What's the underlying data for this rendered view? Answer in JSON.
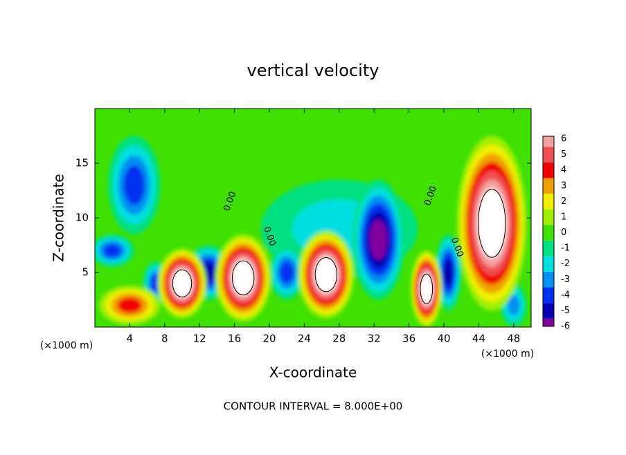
{
  "chart_data": {
    "type": "contour",
    "title": "vertical velocity",
    "xlabel": "X-coordinate",
    "ylabel": "Z-coordinate",
    "xunit": "(×1000 m)",
    "xunit2": "(×1000 m)",
    "footnote": "CONTOUR INTERVAL = 8.000E+00",
    "xlim": [
      0,
      50
    ],
    "ylim": [
      0,
      20
    ],
    "xticks": [
      4,
      8,
      12,
      16,
      20,
      24,
      28,
      32,
      36,
      40,
      44,
      48
    ],
    "yticks": [
      5,
      10,
      15
    ],
    "colorbar": {
      "levels": [
        -6,
        -5,
        -4,
        -3,
        -2,
        -1,
        0,
        1,
        2,
        3,
        4,
        5,
        6
      ],
      "colors": [
        "#8000a0",
        "#0000b0",
        "#0030f0",
        "#0090f0",
        "#00e0e0",
        "#00e080",
        "#40e000",
        "#a0f000",
        "#f0f000",
        "#f0a000",
        "#f00000",
        "#f05050",
        "#f4a0a0"
      ],
      "above": "#ffffff"
    },
    "features": [
      {
        "x": 28,
        "z": 9,
        "rx": 9,
        "rz": 4.5,
        "value": -2
      },
      {
        "x": 4.5,
        "z": 13,
        "rx": 3,
        "rz": 4.5,
        "value": -4
      },
      {
        "x": 2,
        "z": 7,
        "rx": 2.5,
        "rz": 1.5,
        "value": -4
      },
      {
        "x": 32.5,
        "z": 8,
        "rx": 3,
        "rz": 5.5,
        "value": -6
      },
      {
        "x": 22,
        "z": 5,
        "rx": 2,
        "rz": 2.5,
        "value": -4
      },
      {
        "x": 13,
        "z": 5,
        "rx": 2.5,
        "rz": 2.5,
        "value": -5
      },
      {
        "x": 7,
        "z": 4,
        "rx": 1.5,
        "rz": 2,
        "value": -4
      },
      {
        "x": 40.5,
        "z": 5,
        "rx": 1.5,
        "rz": 3.5,
        "value": -5
      },
      {
        "x": 48,
        "z": 2,
        "rx": 1.5,
        "rz": 2,
        "value": -3
      },
      {
        "x": 4,
        "z": 2,
        "rx": 3.5,
        "rz": 1.8,
        "value": 4
      },
      {
        "x": 10,
        "z": 4,
        "rx": 2.8,
        "rz": 3.2,
        "value": 8
      },
      {
        "x": 17,
        "z": 4.5,
        "rx": 3.2,
        "rz": 4,
        "value": 8
      },
      {
        "x": 26.5,
        "z": 4.8,
        "rx": 3.2,
        "rz": 4,
        "value": 8
      },
      {
        "x": 38,
        "z": 3.5,
        "rx": 1.8,
        "rz": 3.5,
        "value": 8
      },
      {
        "x": 45.5,
        "z": 9.5,
        "rx": 4,
        "rz": 8,
        "value": 8
      }
    ],
    "contour_labels": [
      {
        "text": "0.00",
        "x": 15.5,
        "z": 11.5
      },
      {
        "text": "0.00",
        "x": 20,
        "z": 8.3
      },
      {
        "text": "0.00",
        "x": 38.5,
        "z": 12
      },
      {
        "text": "0.00",
        "x": 41.5,
        "z": 7.3
      }
    ]
  }
}
